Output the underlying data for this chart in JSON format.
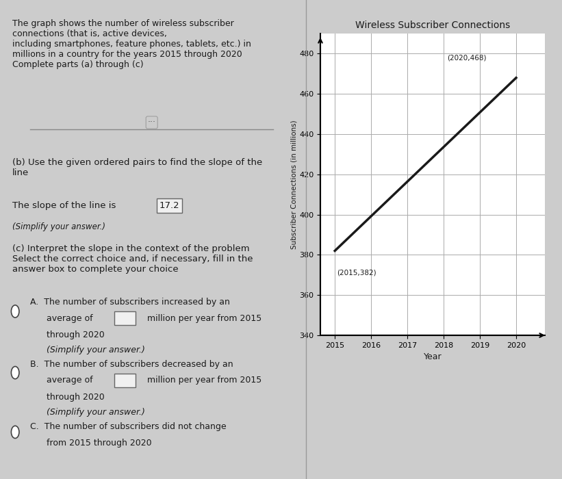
{
  "title": "Wireless Subscriber Connections",
  "xlabel": "Year",
  "ylabel": "Subscriber Connections (in millions)",
  "x_data": [
    2015,
    2020
  ],
  "y_data": [
    382,
    468
  ],
  "point1_label": "(2015,382)",
  "point2_label": "(2020,468)",
  "yticks": [
    340,
    360,
    380,
    400,
    420,
    440,
    460,
    480
  ],
  "xticks": [
    2015,
    2016,
    2017,
    2018,
    2019,
    2020
  ],
  "grid_color": "#aaaaaa",
  "line_color": "#1a1a1a",
  "bg_color": "#e0e0e0",
  "panel_bg": "#cccccc",
  "text_color": "#1a1a1a",
  "slope_value": "17.2",
  "description": "The graph shows the number of wireless subscriber\nconnections (that is, active devices,\nincluding smartphones, feature phones, tablets, etc.) in\nmillions in a country for the years 2015 through 2020\nComplete parts (a) through (c)",
  "part_b_text": "(b) Use the given ordered pairs to find the slope of the\nline",
  "simplify_b": "(Simplify your answer.)",
  "part_c_text": "(c) Interpret the slope in the context of the problem\nSelect the correct choice and, if necessary, fill in the\nanswer box to complete your choice"
}
